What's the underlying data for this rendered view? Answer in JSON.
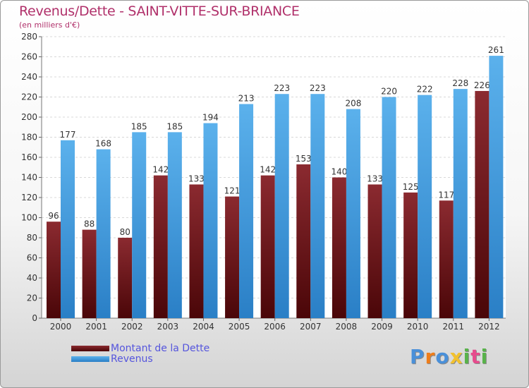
{
  "chart_data": {
    "type": "bar",
    "title": "Revenus/Dette - SAINT-VITTE-SUR-BRIANCE",
    "subtitle": "(en milliers d'€)",
    "categories": [
      "2000",
      "2001",
      "2002",
      "2003",
      "2004",
      "2005",
      "2006",
      "2007",
      "2008",
      "2009",
      "2010",
      "2011",
      "2012"
    ],
    "series": [
      {
        "name": "Montant de la Dette",
        "color": "#8b1c22",
        "values": [
          96,
          88,
          80,
          142,
          133,
          121,
          142,
          153,
          140,
          133,
          125,
          117,
          226
        ]
      },
      {
        "name": "Revenus",
        "color": "#4aa1e2",
        "values": [
          177,
          168,
          185,
          185,
          194,
          213,
          223,
          223,
          208,
          220,
          222,
          228,
          261
        ]
      }
    ],
    "yticks": [
      0,
      20,
      40,
      60,
      80,
      100,
      120,
      140,
      160,
      180,
      200,
      220,
      240,
      260,
      280
    ],
    "ylim": [
      0,
      280
    ],
    "grid": true,
    "legend_position": "bottom-left"
  },
  "logo": {
    "text": "Proxiti",
    "colors": [
      "#4a90d9",
      "#ef7d1a",
      "#4a90d9",
      "#f2c12e",
      "#58b34a",
      "#e64b8c",
      "#58b34a"
    ]
  }
}
